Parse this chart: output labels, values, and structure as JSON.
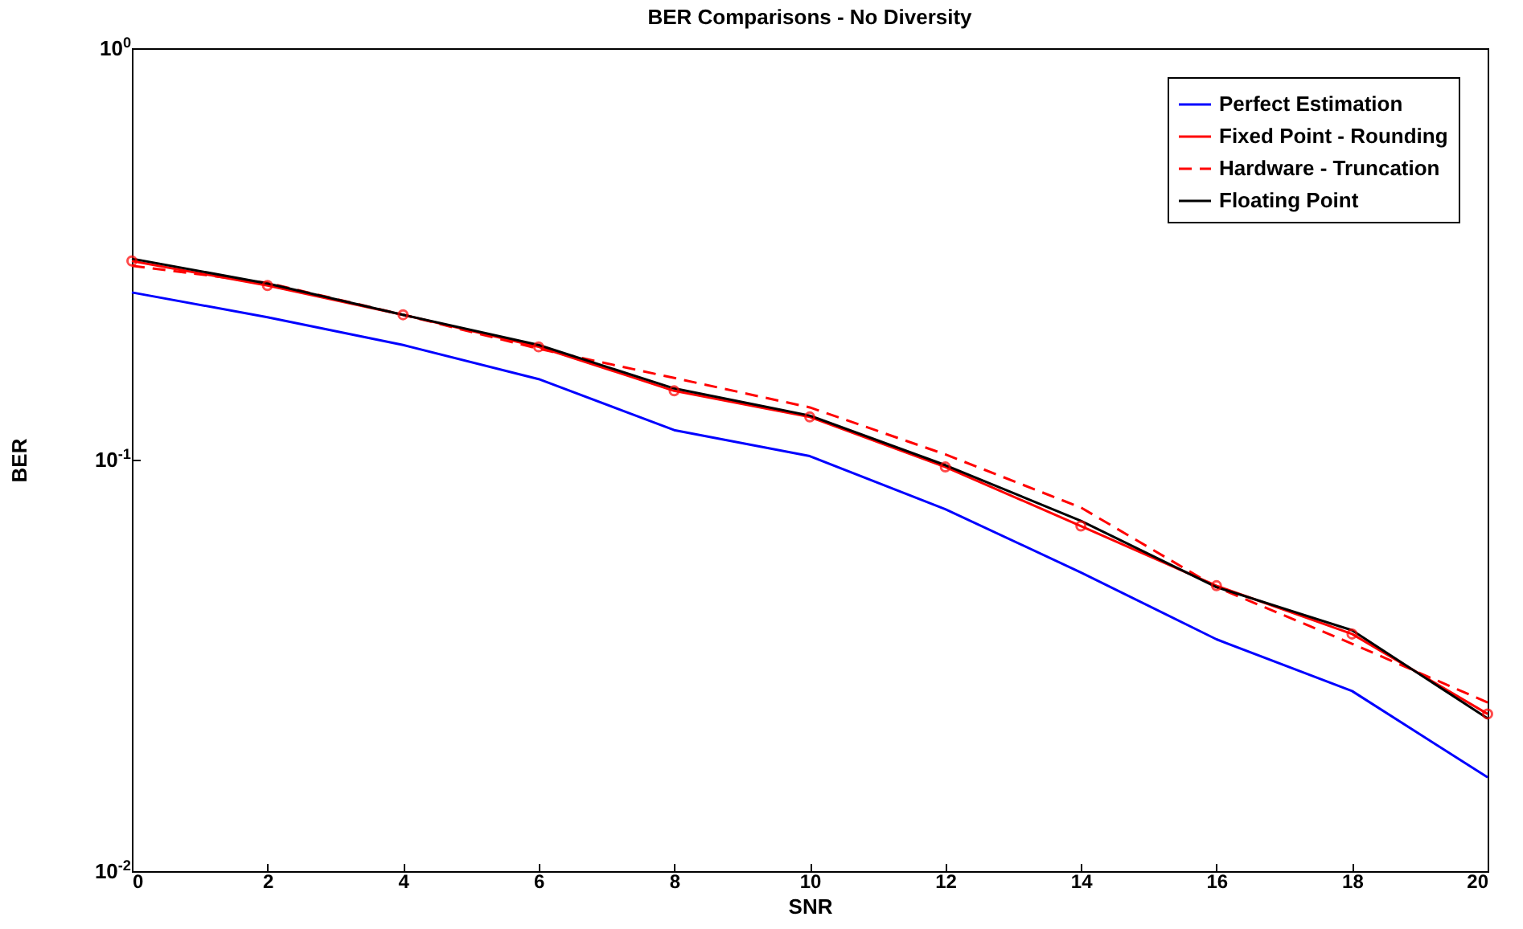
{
  "chart_data": {
    "type": "line",
    "title": "BER Comparisons - No Diversity",
    "xlabel": "SNR",
    "ylabel": "BER",
    "x": [
      0,
      2,
      4,
      6,
      8,
      10,
      12,
      14,
      16,
      18,
      20
    ],
    "series": [
      {
        "name": "Perfect Estimation",
        "color": "#0000ff",
        "line_style": "solid",
        "values": [
          0.255,
          0.222,
          0.19,
          0.157,
          0.118,
          0.102,
          0.0758,
          0.0532,
          0.0366,
          0.0274,
          0.0169
        ]
      },
      {
        "name": "Fixed Point - Rounding",
        "color": "#ff0000",
        "line_style": "solid",
        "marker": "circle",
        "values": [
          0.304,
          0.265,
          0.225,
          0.188,
          0.147,
          0.127,
          0.096,
          0.069,
          0.0494,
          0.0377,
          0.0241
        ]
      },
      {
        "name": "Hardware - Truncation",
        "color": "#ff0000",
        "line_style": "dashed",
        "values": [
          0.296,
          0.269,
          0.225,
          0.186,
          0.158,
          0.134,
          0.103,
          0.0765,
          0.049,
          0.0357,
          0.0257
        ]
      },
      {
        "name": "Floating Point",
        "color": "#000000",
        "line_style": "solid",
        "values": [
          0.308,
          0.268,
          0.225,
          0.19,
          0.149,
          0.128,
          0.097,
          0.071,
          0.049,
          0.0385,
          0.0235
        ]
      }
    ],
    "log": "y",
    "xlim": [
      0,
      20
    ],
    "xticks": [
      0,
      2,
      4,
      6,
      8,
      10,
      12,
      14,
      16,
      18,
      20
    ],
    "ylim": [
      0.01,
      1
    ],
    "yticks": [
      {
        "value": 0.01,
        "label": "10$^{-2}$"
      },
      {
        "value": 0.1,
        "label": "10$^{-1}$"
      },
      {
        "value": 1,
        "label": "10$^{0}$"
      }
    ],
    "grid": false,
    "legend": "top right"
  }
}
